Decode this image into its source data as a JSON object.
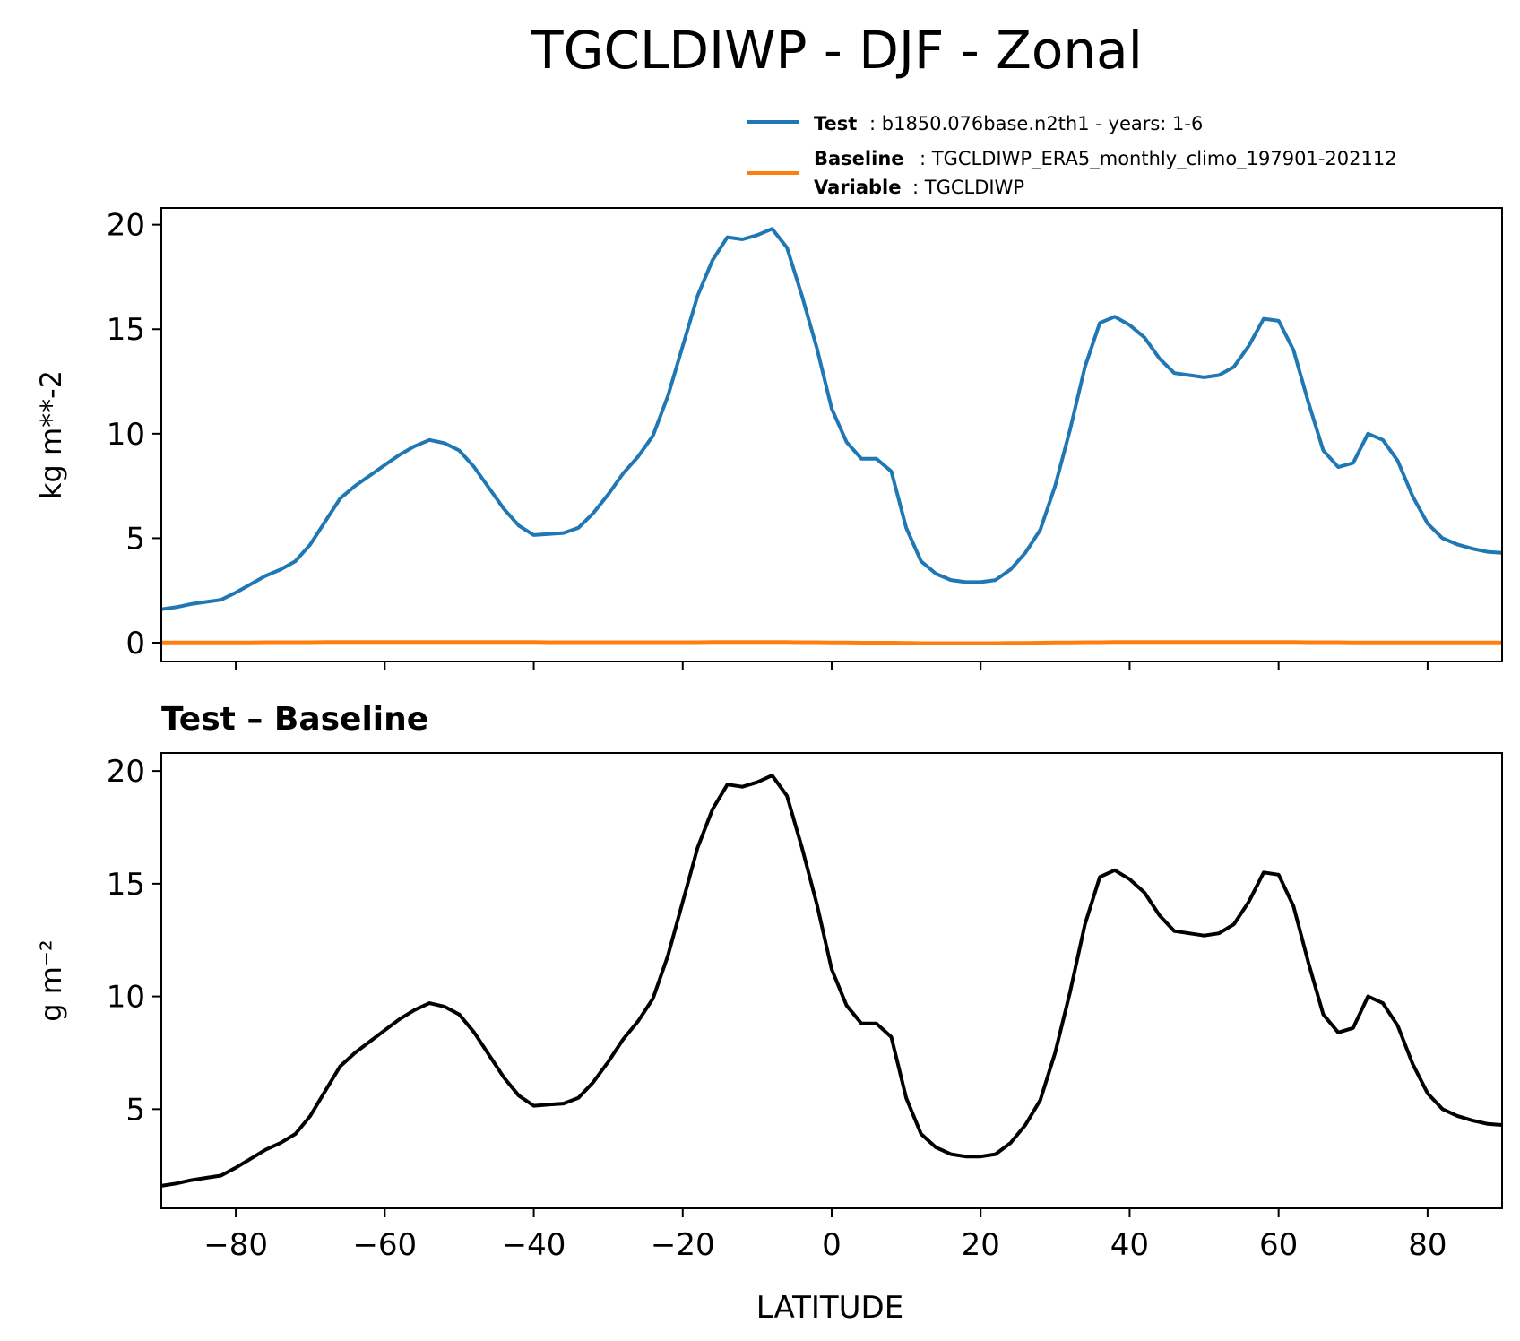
{
  "figure": {
    "title": "TGCLDIWP - DJF - Zonal",
    "xlabel": "LATITUDE",
    "diff_title": "Test – Baseline"
  },
  "legend": {
    "test_key": "Test",
    "test_value": ": b1850.076base.n2th1 - years: 1-6",
    "baseline_key": "Baseline",
    "baseline_value": ": TGCLDIWP_ERA5_monthly_climo_197901-202112",
    "variable_key": "Variable",
    "variable_value": ": TGCLDIWP",
    "placement": "top-right above top panel"
  },
  "colors": {
    "test": "#1f77b4",
    "baseline": "#ff7f0e",
    "diff": "#000000"
  },
  "chart_data": [
    {
      "type": "line",
      "panel": "top",
      "ylabel": "kg m**-2",
      "xlim": [
        -90,
        90
      ],
      "ylim": [
        -0.9,
        20.8
      ],
      "xticks": [
        -80,
        -60,
        -40,
        -20,
        0,
        20,
        40,
        60,
        80
      ],
      "yticks": [
        0,
        5,
        10,
        15,
        20
      ],
      "show_xticklabels": false,
      "grid": false,
      "x": [
        -90,
        -88,
        -86,
        -84,
        -82,
        -80,
        -78,
        -76,
        -74,
        -72,
        -70,
        -68,
        -66,
        -64,
        -62,
        -60,
        -58,
        -56,
        -54,
        -52,
        -50,
        -48,
        -46,
        -44,
        -42,
        -40,
        -38,
        -36,
        -34,
        -32,
        -30,
        -28,
        -26,
        -24,
        -22,
        -20,
        -18,
        -16,
        -14,
        -12,
        -10,
        -8,
        -6,
        -4,
        -2,
        0,
        2,
        4,
        6,
        8,
        10,
        12,
        14,
        16,
        18,
        20,
        22,
        24,
        26,
        28,
        30,
        32,
        34,
        36,
        38,
        40,
        42,
        44,
        46,
        48,
        50,
        52,
        54,
        56,
        58,
        60,
        62,
        64,
        66,
        68,
        70,
        72,
        74,
        76,
        78,
        80,
        82,
        84,
        86,
        88,
        90
      ],
      "series": [
        {
          "name": "Test",
          "values": [
            1.6,
            1.7,
            1.85,
            1.95,
            2.05,
            2.4,
            2.8,
            3.2,
            3.5,
            3.9,
            4.7,
            5.8,
            6.9,
            7.5,
            8.0,
            8.5,
            9.0,
            9.4,
            9.7,
            9.55,
            9.2,
            8.4,
            7.4,
            6.4,
            5.6,
            5.15,
            5.2,
            5.25,
            5.5,
            6.2,
            7.1,
            8.1,
            8.9,
            9.9,
            11.8,
            14.2,
            16.6,
            18.3,
            19.4,
            19.3,
            19.5,
            19.8,
            18.9,
            16.6,
            14.1,
            11.2,
            9.6,
            8.8,
            8.8,
            8.2,
            5.5,
            3.9,
            3.3,
            3.0,
            2.9,
            2.9,
            3.0,
            3.5,
            4.3,
            5.4,
            7.5,
            10.2,
            13.2,
            15.3,
            15.6,
            15.2,
            14.6,
            13.6,
            12.9,
            12.8,
            12.7,
            12.8,
            13.2,
            14.2,
            15.5,
            15.4,
            14.0,
            11.5,
            9.2,
            8.4,
            8.6,
            10.0,
            9.7,
            8.7,
            7.0,
            5.7,
            5.0,
            4.7,
            4.5,
            4.35,
            4.3
          ]
        },
        {
          "name": "Baseline",
          "values": [
            0.01,
            0.01,
            0.01,
            0.01,
            0.01,
            0.01,
            0.01,
            0.02,
            0.02,
            0.02,
            0.02,
            0.03,
            0.03,
            0.03,
            0.03,
            0.03,
            0.03,
            0.03,
            0.03,
            0.03,
            0.03,
            0.03,
            0.03,
            0.03,
            0.03,
            0.03,
            0.02,
            0.02,
            0.02,
            0.02,
            0.02,
            0.02,
            0.02,
            0.02,
            0.02,
            0.02,
            0.02,
            0.03,
            0.03,
            0.03,
            0.03,
            0.03,
            0.03,
            0.02,
            0.02,
            0.01,
            0.01,
            0.0,
            0.0,
            0.0,
            -0.01,
            -0.02,
            -0.02,
            -0.02,
            -0.02,
            -0.02,
            -0.02,
            -0.01,
            -0.01,
            0.0,
            0.01,
            0.01,
            0.02,
            0.02,
            0.03,
            0.03,
            0.03,
            0.03,
            0.03,
            0.03,
            0.03,
            0.03,
            0.03,
            0.03,
            0.03,
            0.03,
            0.03,
            0.02,
            0.02,
            0.02,
            0.01,
            0.01,
            0.01,
            0.01,
            0.01,
            0.01,
            0.01,
            0.01,
            0.01,
            0.01,
            0.01
          ]
        }
      ]
    },
    {
      "type": "line",
      "panel": "bottom",
      "title": "Test – Baseline",
      "ylabel": "g m⁻²",
      "xlabel": "LATITUDE",
      "xlim": [
        -90,
        90
      ],
      "ylim": [
        0.6,
        20.8
      ],
      "xticks": [
        -80,
        -60,
        -40,
        -20,
        0,
        20,
        40,
        60,
        80
      ],
      "yticks": [
        5,
        10,
        15,
        20
      ],
      "grid": false,
      "x": [
        -90,
        -88,
        -86,
        -84,
        -82,
        -80,
        -78,
        -76,
        -74,
        -72,
        -70,
        -68,
        -66,
        -64,
        -62,
        -60,
        -58,
        -56,
        -54,
        -52,
        -50,
        -48,
        -46,
        -44,
        -42,
        -40,
        -38,
        -36,
        -34,
        -32,
        -30,
        -28,
        -26,
        -24,
        -22,
        -20,
        -18,
        -16,
        -14,
        -12,
        -10,
        -8,
        -6,
        -4,
        -2,
        0,
        2,
        4,
        6,
        8,
        10,
        12,
        14,
        16,
        18,
        20,
        22,
        24,
        26,
        28,
        30,
        32,
        34,
        36,
        38,
        40,
        42,
        44,
        46,
        48,
        50,
        52,
        54,
        56,
        58,
        60,
        62,
        64,
        66,
        68,
        70,
        72,
        74,
        76,
        78,
        80,
        82,
        84,
        86,
        88,
        90
      ],
      "series": [
        {
          "values": [
            1.6,
            1.7,
            1.85,
            1.95,
            2.05,
            2.4,
            2.8,
            3.2,
            3.5,
            3.9,
            4.7,
            5.8,
            6.9,
            7.5,
            8.0,
            8.5,
            9.0,
            9.4,
            9.7,
            9.55,
            9.2,
            8.4,
            7.4,
            6.4,
            5.6,
            5.15,
            5.2,
            5.25,
            5.5,
            6.2,
            7.1,
            8.1,
            8.9,
            9.9,
            11.8,
            14.2,
            16.6,
            18.3,
            19.4,
            19.3,
            19.5,
            19.8,
            18.9,
            16.6,
            14.1,
            11.2,
            9.6,
            8.8,
            8.8,
            8.2,
            5.5,
            3.9,
            3.3,
            3.0,
            2.9,
            2.9,
            3.0,
            3.5,
            4.3,
            5.4,
            7.5,
            10.2,
            13.2,
            15.3,
            15.6,
            15.2,
            14.6,
            13.6,
            12.9,
            12.8,
            12.7,
            12.8,
            13.2,
            14.2,
            15.5,
            15.4,
            14.0,
            11.5,
            9.2,
            8.4,
            8.6,
            10.0,
            9.7,
            8.7,
            7.0,
            5.7,
            5.0,
            4.7,
            4.5,
            4.35,
            4.3
          ]
        }
      ]
    }
  ]
}
